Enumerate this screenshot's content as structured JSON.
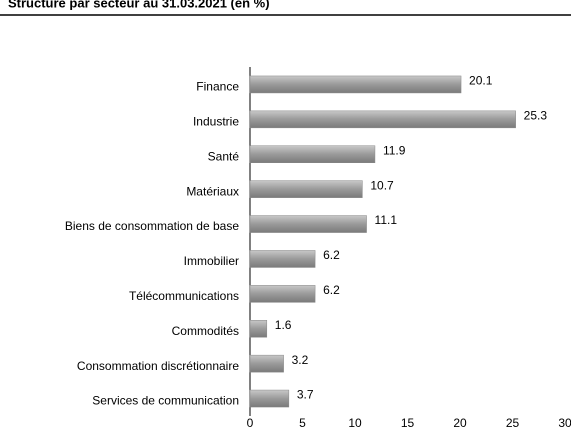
{
  "chart_data": {
    "type": "bar",
    "orientation": "horizontal",
    "title": "Structure par secteur au 31.03.2021 (en %)",
    "categories": [
      "Finance",
      "Industrie",
      "Santé",
      "Matériaux",
      "Biens de consommation de base",
      "Immobilier",
      "Télécommunications",
      "Commodités",
      "Consommation discrétionnaire",
      "Services de communication"
    ],
    "values": [
      20.1,
      25.3,
      11.9,
      10.7,
      11.1,
      6.2,
      6.2,
      1.6,
      3.2,
      3.7
    ],
    "color": "#a0a0a0",
    "xlim": [
      0,
      30
    ],
    "xticks": [
      0,
      5,
      10,
      15,
      20,
      25,
      30
    ],
    "grid": false
  }
}
